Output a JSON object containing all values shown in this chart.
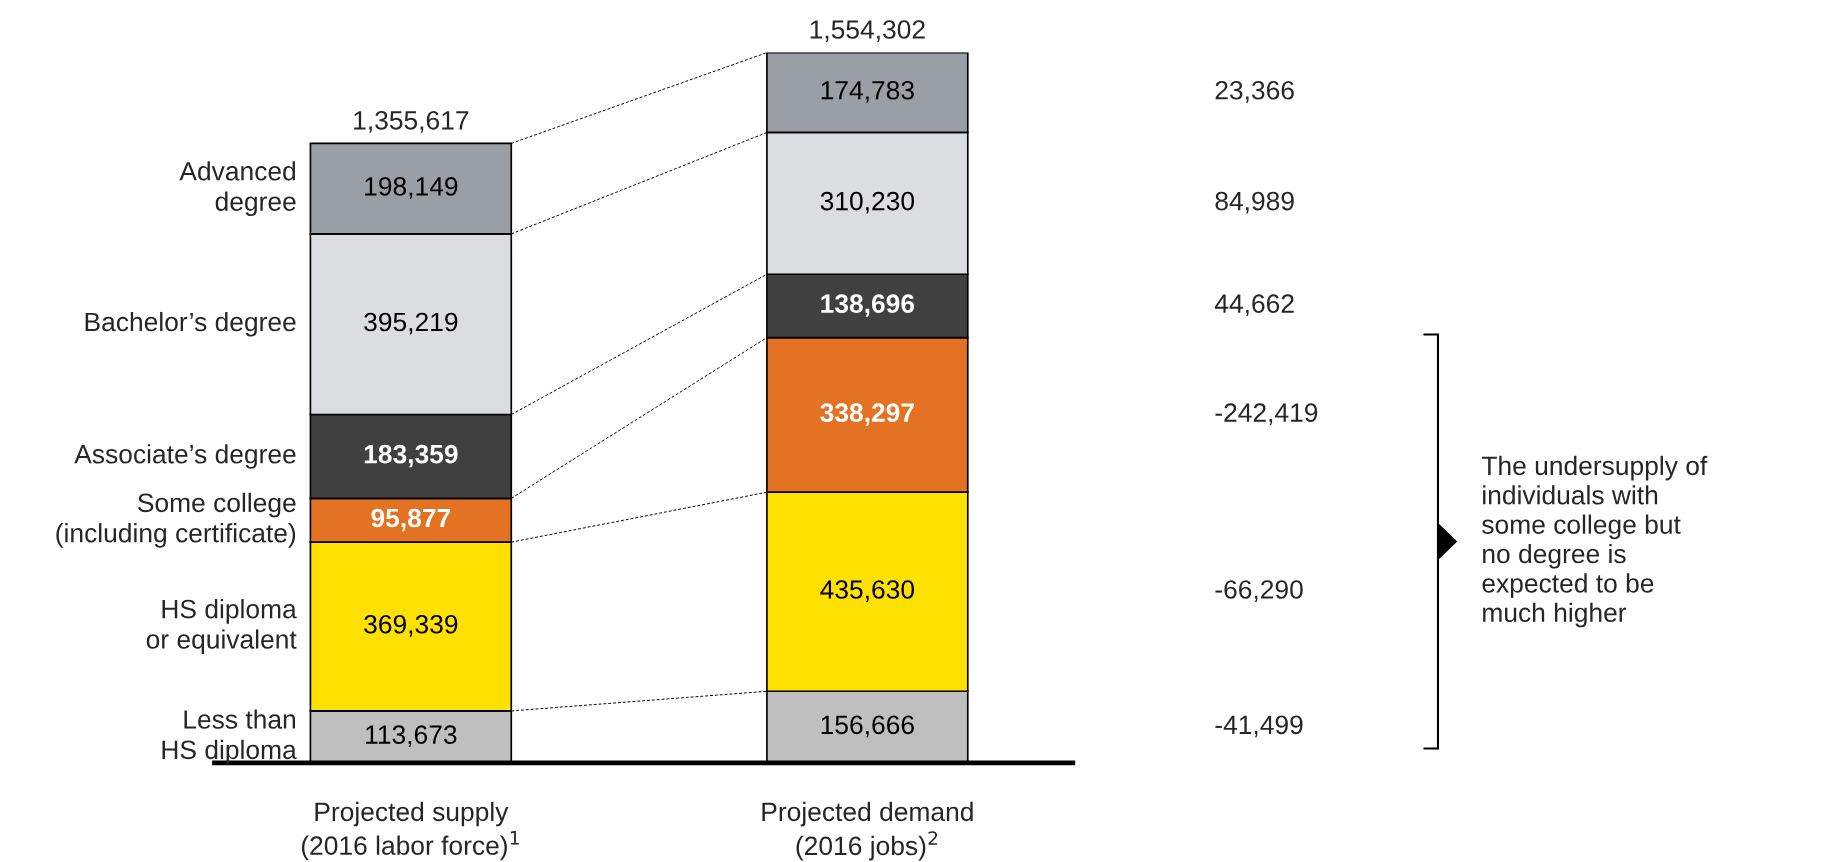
{
  "chart_data": {
    "type": "bar",
    "stacked": true,
    "categories": [
      "Projected supply\n(2016 labor force)$^{1}$",
      "Projected demand\n(2016 jobs)$^{2}$"
    ],
    "series": [
      {
        "name": "Less than\nHS diploma",
        "color": "#bfbfbf",
        "values": [
          113673,
          156666
        ],
        "value_labels": [
          "113,673",
          "156,666"
        ]
      },
      {
        "name": "HS diploma\nor equivalent",
        "color": "#ffe100",
        "values": [
          369339,
          435630
        ],
        "value_labels": [
          "369,339",
          "435,630"
        ]
      },
      {
        "name": "Some college\n(including certificate)",
        "color": "#e37222",
        "values": [
          95877,
          338297
        ],
        "value_labels": [
          "95,877",
          "338,297"
        ]
      },
      {
        "name": "Associate’s degree",
        "color": "#404041",
        "values": [
          183359,
          138696
        ],
        "value_labels": [
          "183,359",
          "138,696"
        ]
      },
      {
        "name": "Bachelor’s degree",
        "color": "#dcdde0",
        "values": [
          395219,
          310230
        ],
        "value_labels": [
          "395,219",
          "310,230"
        ]
      },
      {
        "name": "Advanced\ndegree",
        "color": "#9a9ea5",
        "values": [
          198149,
          174783
        ],
        "value_labels": [
          "198,149",
          "174,783"
        ]
      }
    ],
    "totals": [
      "1,355,617",
      "1,554,302"
    ],
    "annotations": [
      "-41,499",
      "-66,290",
      "-242,419",
      "44,662",
      "84,989",
      "23,366",
      "The undersupply of\nindividuals with\nsome college but\nno degree is\nexpected to be\nmuch higher"
    ]
  }
}
